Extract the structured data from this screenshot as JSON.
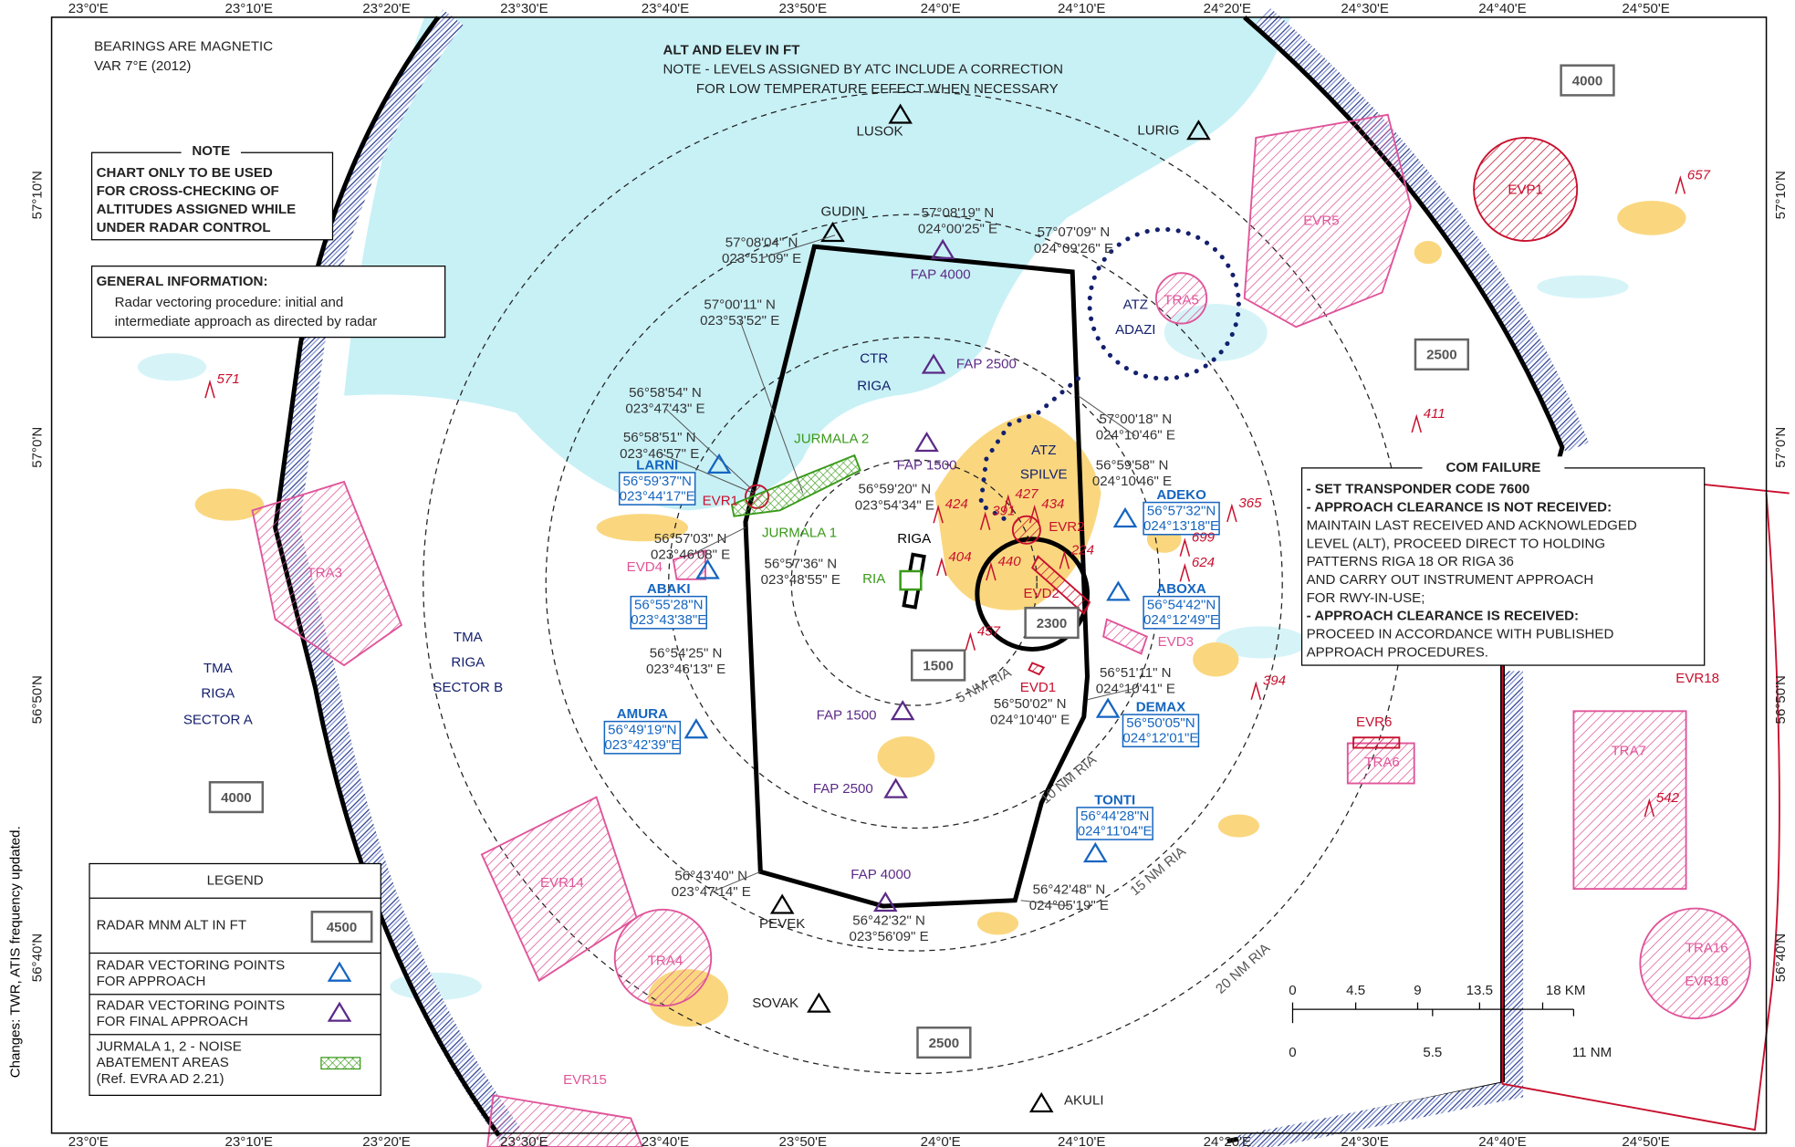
{
  "header": {
    "bearings": "BEARINGS ARE MAGNETIC",
    "variation": "VAR 7°E (2012)",
    "units": "ALT AND ELEV IN FT",
    "note_lines": [
      "NOTE - LEVELS ASSIGNED BY ATC INCLUDE A CORRECTION",
      "FOR LOW TEMPERATURE EFFECT WHEN NECESSARY"
    ]
  },
  "note_box": {
    "title": "NOTE",
    "lines": [
      "CHART ONLY TO BE USED",
      "FOR CROSS-CHECKING OF",
      "ALTITUDES ASSIGNED WHILE",
      "UNDER RADAR CONTROL"
    ]
  },
  "general_info": {
    "title": "GENERAL INFORMATION:",
    "lines": [
      "Radar vectoring procedure: initial and",
      "intermediate approach as directed by radar"
    ]
  },
  "longitudes": [
    "23°0'E",
    "23°10'E",
    "23°20'E",
    "23°30'E",
    "23°40'E",
    "23°50'E",
    "24°0'E",
    "24°10'E",
    "24°20'E",
    "24°30'E",
    "24°40'E",
    "24°50'E"
  ],
  "latitudes": [
    "57°10'N",
    "57°0'N",
    "56°50'N",
    "56°40'N"
  ],
  "waypoints": [
    "LUSOK",
    "LURIG",
    "GUDIN",
    "PEVEK",
    "SOVAK",
    "AKULI"
  ],
  "altitude_boxes": [
    "4000",
    "2500",
    "1500",
    "2300",
    "4000",
    "2500"
  ],
  "sectors": [
    "TMA",
    "RIGA",
    "SECTOR A",
    "TMA",
    "RIGA",
    "SECTOR B",
    "CTR",
    "RIGA",
    "ATZ",
    "ADAZI",
    "ATZ",
    "SPILVE",
    "RIGA",
    "RIA"
  ],
  "final_approach_points": [
    "FAP 4000",
    "FAP 2500",
    "FAP 1500",
    "FAP 1500",
    "FAP 2500",
    "FAP 4000"
  ],
  "coordinates": [
    {
      "lat": "57°08'19\" N",
      "lon": "024°00'25\" E"
    },
    {
      "lat": "57°07'09\" N",
      "lon": "024°09'26\" E"
    },
    {
      "lat": "57°08'04\" N",
      "lon": "023°51'09\" E"
    },
    {
      "lat": "57°00'11\" N",
      "lon": "023°53'52\" E"
    },
    {
      "lat": "56°58'54\" N",
      "lon": "023°47'43\" E"
    },
    {
      "lat": "56°58'51\" N",
      "lon": "023°46'57\" E"
    },
    {
      "lat": "56°59'20\" N",
      "lon": "023°54'34\" E"
    },
    {
      "lat": "56°57'03\" N",
      "lon": "023°46'08\" E"
    },
    {
      "lat": "56°57'36\" N",
      "lon": "023°48'55\" E"
    },
    {
      "lat": "56°54'25\" N",
      "lon": "023°46'13\" E"
    },
    {
      "lat": "57°00'18\" N",
      "lon": "024°10'46\" E"
    },
    {
      "lat": "56°59'58\" N",
      "lon": "024°10'46\" E"
    },
    {
      "lat": "56°51'11\" N",
      "lon": "024°10'41\" E"
    },
    {
      "lat": "56°50'02\" N",
      "lon": "024°10'40\" E"
    },
    {
      "lat": "56°43'40\" N",
      "lon": "023°47'14\" E"
    },
    {
      "lat": "56°42'48\" N",
      "lon": "024°05'19\" E"
    },
    {
      "lat": "56°42'32\" N",
      "lon": "023°56'09\" E"
    }
  ],
  "vectoring_points": [
    {
      "name": "LARNI",
      "lat": "56°59'37\"N",
      "lon": "023°44'17\"E"
    },
    {
      "name": "ABAKI",
      "lat": "56°55'28\"N",
      "lon": "023°43'38\"E"
    },
    {
      "name": "AMURA",
      "lat": "56°49'19\"N",
      "lon": "023°42'39\"E"
    },
    {
      "name": "ADEKO",
      "lat": "56°57'32\"N",
      "lon": "024°13'18\"E"
    },
    {
      "name": "ABOXA",
      "lat": "56°54'42\"N",
      "lon": "024°12'49\"E"
    },
    {
      "name": "DEMAX",
      "lat": "56°50'05\"N",
      "lon": "024°12'01\"E"
    },
    {
      "name": "TONTI",
      "lat": "56°44'28\"N",
      "lon": "024°11'04\"E"
    }
  ],
  "areas": [
    "EVR1",
    "EVR2",
    "EVD2",
    "EVD3",
    "EVD1",
    "EVD4",
    "JURMALA 2",
    "JURMALA 1",
    "TRA5",
    "EVR5",
    "EVP1",
    "TRA3",
    "EVR14",
    "TRA4",
    "EVR15",
    "EVR6",
    "TRA6",
    "TRA7",
    "EVR18",
    "TRA16",
    "EVR16"
  ],
  "elevations": [
    "571",
    "657",
    "411",
    "365",
    "699",
    "624",
    "394",
    "542",
    "424",
    "391",
    "427",
    "434",
    "404",
    "440",
    "224",
    "457"
  ],
  "range_rings": [
    "5 NM RIA",
    "10 NM RIA",
    "15 NM RIA",
    "20 NM RIA"
  ],
  "com_failure": {
    "title": "COM FAILURE",
    "lines": [
      "- SET TRANSPONDER CODE 7600",
      "- APPROACH CLEARANCE IS NOT RECEIVED:",
      "MAINTAIN  LAST RECEIVED AND ACKNOWLEDGED",
      "LEVEL (ALT), PROCEED DIRECT TO  HOLDING",
      "PATTERNS RIGA 18 OR RIGA 36",
      "AND CARRY OUT  INSTRUMENT APPROACH",
      "FOR  RWY-IN-USE;",
      "- APPROACH CLEARANCE IS RECEIVED:",
      "PROCEED IN ACCORDANCE WITH PUBLISHED",
      "APPROACH PROCEDURES."
    ]
  },
  "legend": {
    "title": "LEGEND",
    "radar_alt": "RADAR  MNM  ALT IN FT",
    "sample_alt": "4500",
    "approach": [
      "RADAR VECTORING POINTS",
      "FOR APPROACH"
    ],
    "final": [
      "RADAR VECTORING POINTS",
      "FOR FINAL APPROACH"
    ],
    "noise": [
      "JURMALA 1, 2 - NOISE",
      "ABATEMENT AREAS",
      "(Ref. EVRA AD 2.21)"
    ]
  },
  "scale": {
    "km": [
      "0",
      "4.5",
      "9",
      "13.5",
      "18 KM"
    ],
    "nm": [
      "0",
      "5.5",
      "11 NM"
    ]
  },
  "changes_note": "Changes: TWR, ATIS frequency updated."
}
